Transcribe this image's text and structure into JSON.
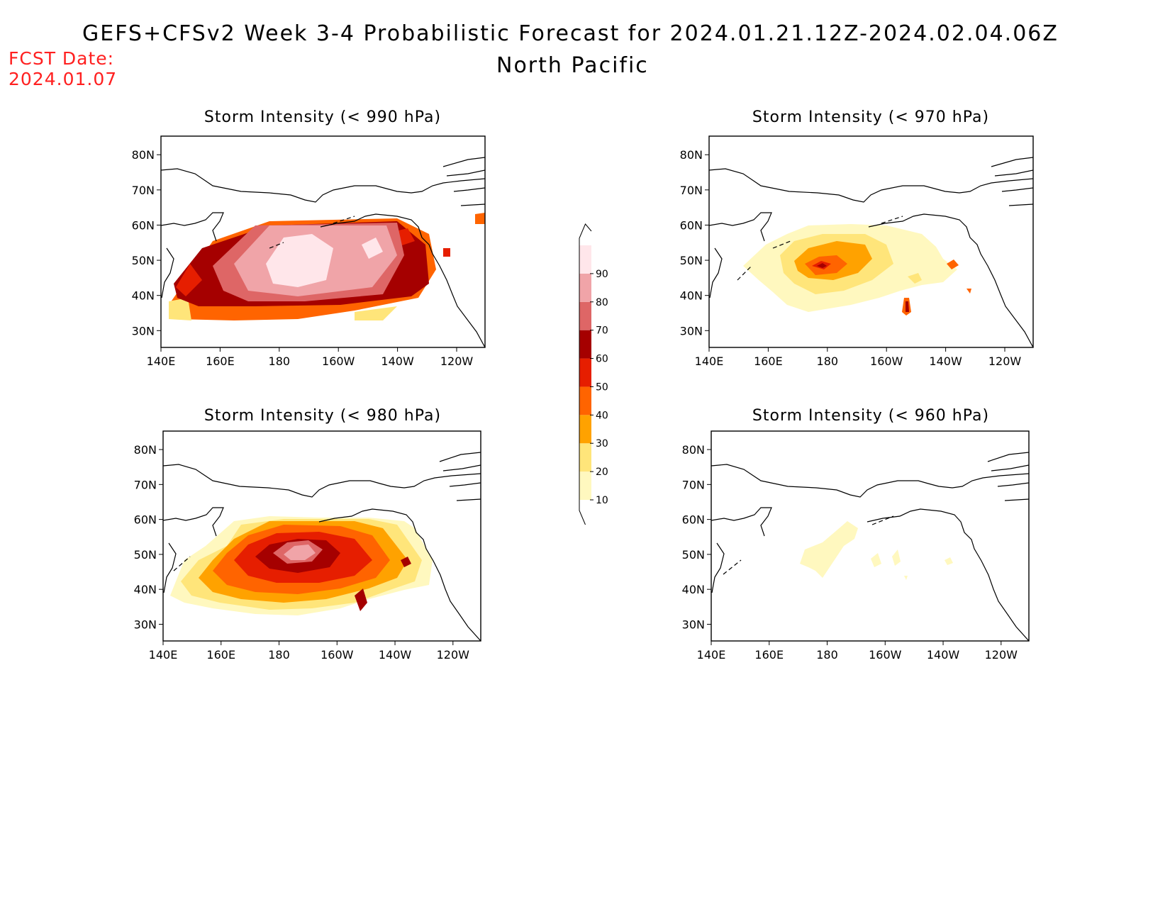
{
  "title": "GEFS+CFSv2 Week 3-4 Probabilistic Forecast for 2024.01.21.12Z-2024.02.04.06Z",
  "subtitle": "North Pacific",
  "fcst_date": {
    "label": "FCST Date:",
    "value": "2024.01.07"
  },
  "colorbar": {
    "levels": [
      "10",
      "20",
      "30",
      "40",
      "50",
      "60",
      "70",
      "80",
      "90"
    ],
    "colors": [
      "#fff8bf",
      "#ffe57a",
      "#ffa200",
      "#ff6400",
      "#e61e00",
      "#a50000",
      "#de6666",
      "#f0a4a8",
      "#ffe6ea"
    ]
  },
  "axis": {
    "lon_ticks": [
      "140E",
      "160E",
      "180",
      "160W",
      "140W",
      "120W"
    ],
    "lat_ticks": [
      "80N",
      "70N",
      "60N",
      "50N",
      "40N",
      "30N"
    ]
  },
  "panels": [
    {
      "id": "p990",
      "title": "Storm Intensity (< 990 hPa)"
    },
    {
      "id": "p970",
      "title": "Storm Intensity (< 970 hPa)"
    },
    {
      "id": "p980",
      "title": "Storm Intensity (< 980 hPa)"
    },
    {
      "id": "p960",
      "title": "Storm Intensity (< 960 hPa)"
    }
  ]
}
